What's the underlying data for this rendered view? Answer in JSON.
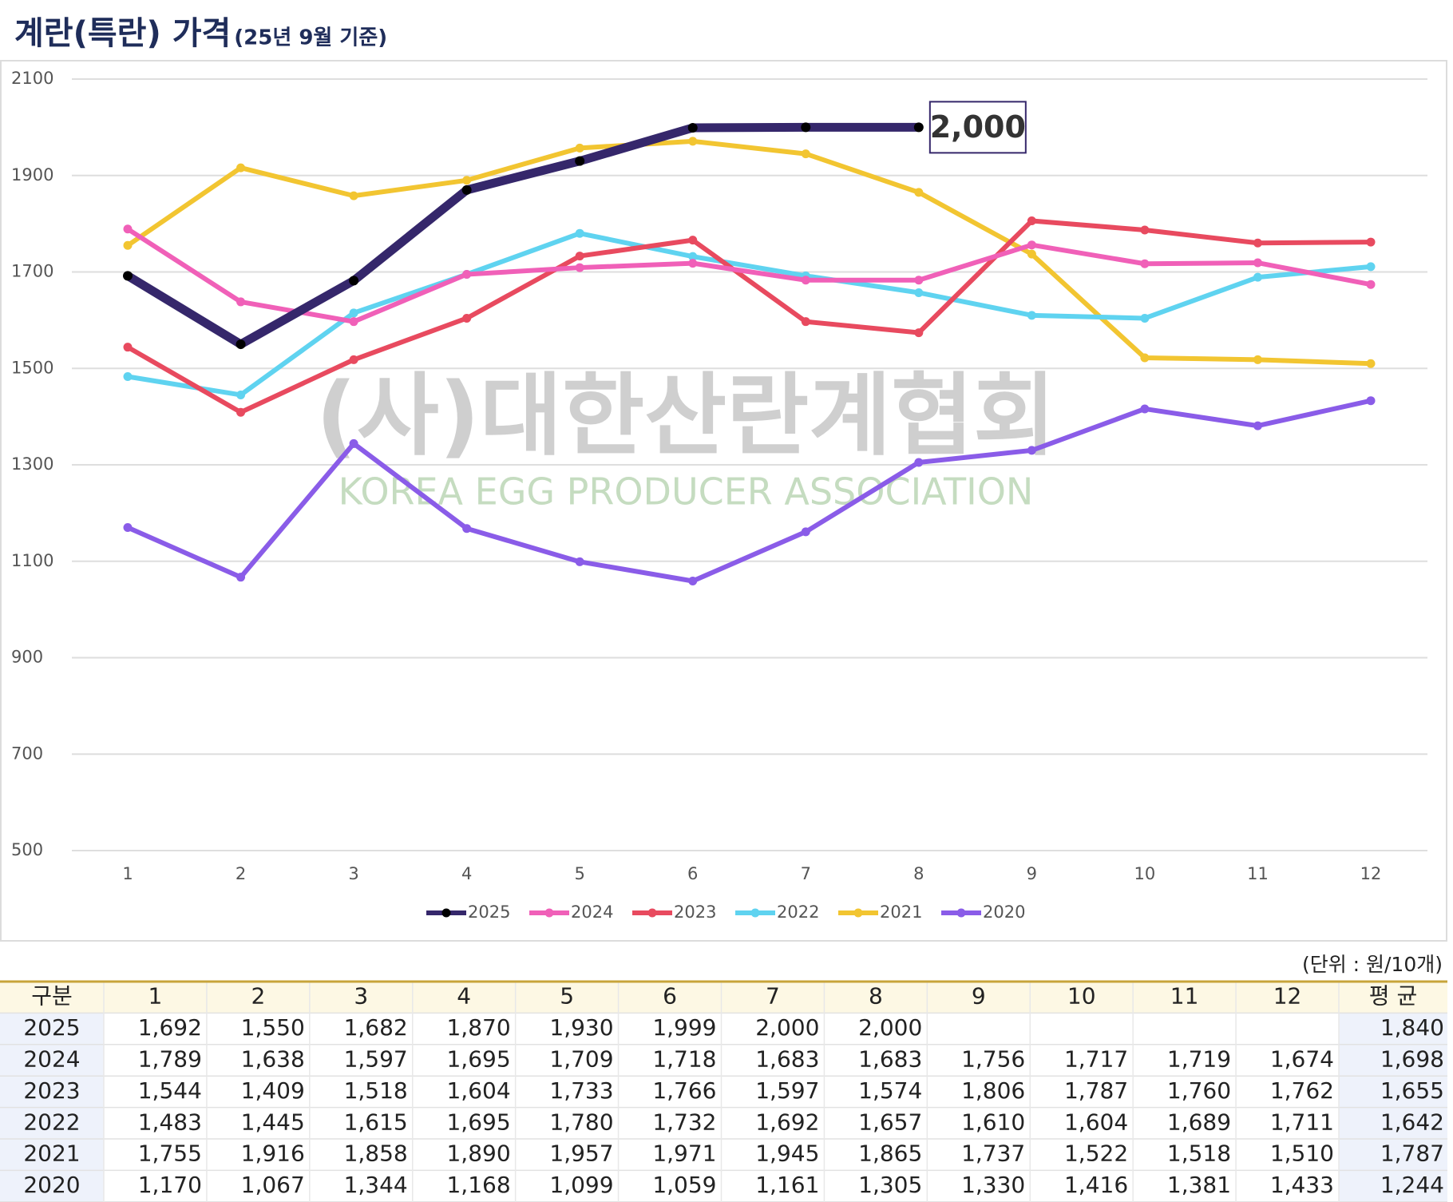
{
  "chart_data": {
    "type": "line",
    "title": "계란(특란) 가격",
    "subtitle": "(25년 9월 기준)",
    "watermark": "(사)대한산란계협회",
    "watermark_en": "KOREA EGG PRODUCER ASSOCIATION",
    "categories": [
      "1",
      "2",
      "3",
      "4",
      "5",
      "6",
      "7",
      "8",
      "9",
      "10",
      "11",
      "12"
    ],
    "ylim": [
      500,
      2100
    ],
    "yticks": [
      500,
      700,
      900,
      1100,
      1300,
      1500,
      1700,
      1900,
      2100
    ],
    "grid": true,
    "legend": "bottom",
    "annotation": {
      "text": "2,000",
      "series": 0,
      "index": 7
    },
    "series": [
      {
        "name": "2025",
        "color": "#35276b",
        "values": [
          1692,
          1550,
          1682,
          1870,
          1930,
          1999,
          2000,
          2000,
          null,
          null,
          null,
          null
        ],
        "value_labels": [
          "1,692",
          "1,550",
          "1,682",
          "1,870",
          "1,930",
          "1,999",
          "2,000",
          "2,000",
          null,
          null,
          null,
          null
        ]
      },
      {
        "name": "2024",
        "color": "#f060b8",
        "values": [
          1789,
          1638,
          1597,
          1695,
          1709,
          1718,
          1683,
          1683,
          1756,
          1717,
          1719,
          1674
        ],
        "value_labels": [
          "1,789",
          "1,638",
          "1,597",
          "1,695",
          "1,709",
          "1,718",
          "1,683",
          "1,683",
          "1,756",
          "1,717",
          "1,719",
          "1,674"
        ]
      },
      {
        "name": "2023",
        "color": "#e84a5f",
        "values": [
          1544,
          1409,
          1518,
          1604,
          1733,
          1766,
          1597,
          1574,
          1806,
          1787,
          1760,
          1762
        ],
        "value_labels": [
          "1,544",
          "1,409",
          "1,518",
          "1,604",
          "1,733",
          "1,766",
          "1,597",
          "1,574",
          "1,806",
          "1,787",
          "1,760",
          "1,762"
        ]
      },
      {
        "name": "2022",
        "color": "#5fd3f0",
        "values": [
          1483,
          1445,
          1615,
          1695,
          1780,
          1732,
          1692,
          1657,
          1610,
          1604,
          1689,
          1711
        ],
        "value_labels": [
          "1,483",
          "1,445",
          "1,615",
          "1,695",
          "1,780",
          "1,732",
          "1,692",
          "1,657",
          "1,610",
          "1,604",
          "1,689",
          "1,711"
        ]
      },
      {
        "name": "2021",
        "color": "#f2c531",
        "values": [
          1755,
          1916,
          1858,
          1890,
          1957,
          1971,
          1945,
          1865,
          1737,
          1522,
          1518,
          1510
        ],
        "value_labels": [
          "1,755",
          "1,916",
          "1,858",
          "1,890",
          "1,957",
          "1,971",
          "1,945",
          "1,865",
          "1,737",
          "1,522",
          "1,518",
          "1,510"
        ]
      },
      {
        "name": "2020",
        "color": "#8a5ce8",
        "values": [
          1170,
          1067,
          1344,
          1168,
          1099,
          1059,
          1161,
          1305,
          1330,
          1416,
          1381,
          1433
        ],
        "value_labels": [
          "1,170",
          "1,067",
          "1,344",
          "1,168",
          "1,099",
          "1,059",
          "1,161",
          "1,305",
          "1,330",
          "1,416",
          "1,381",
          "1,433"
        ]
      }
    ]
  },
  "table": {
    "unit": "(단위 : 원/10개)",
    "corner": "구분",
    "average_header": "평 균",
    "averages": [
      "1,840",
      "1,698",
      "1,655",
      "1,642",
      "1,787",
      "1,244"
    ]
  }
}
